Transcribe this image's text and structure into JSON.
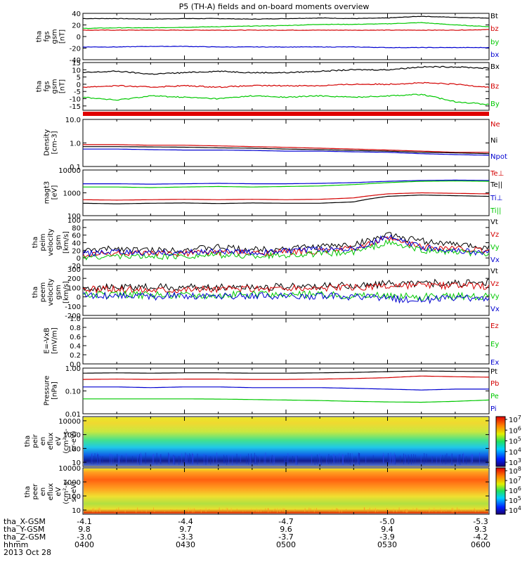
{
  "title": "P5 (TH-A) fields and on-board moments overview",
  "footer_date": "2013 Oct 28",
  "colorbar": {
    "top_ticks": [
      "10^7",
      "10^6",
      "10^5",
      "10^4",
      "10^3"
    ],
    "bottom_ticks": [
      "10^8",
      "10^7",
      "10^6",
      "10^5",
      "10^4"
    ]
  },
  "ephemeris": {
    "row_labels": [
      "tha_X-GSM",
      "tha_Y-GSM",
      "tha_Z-GSM",
      "hhmm"
    ],
    "columns": [
      {
        "time": "0400",
        "x": "-4.1",
        "y": "9.8",
        "z": "-3.0"
      },
      {
        "time": "0430",
        "x": "-4.4",
        "y": "9.7",
        "z": "-3.3"
      },
      {
        "time": "0500",
        "x": "-4.7",
        "y": "9.6",
        "z": "-3.7"
      },
      {
        "time": "0530",
        "x": "-5.0",
        "y": "9.4",
        "z": "-3.9"
      },
      {
        "time": "0600",
        "x": "-5.3",
        "y": "9.3",
        "z": "-4.2"
      }
    ]
  },
  "chart_data": [
    {
      "type": "line",
      "ylabel": [
        "tha",
        "fgs",
        "gsm",
        "[nT]"
      ],
      "ylim": [
        -40,
        40
      ],
      "log": false,
      "yticks": [
        -40,
        -20,
        0,
        20,
        40
      ],
      "yticklabels": [
        "-40",
        "-20",
        "0",
        "20",
        "40"
      ],
      "x": [
        0,
        10,
        20,
        30,
        40,
        50,
        60,
        70,
        80,
        90,
        100,
        110,
        120
      ],
      "series": [
        {
          "name": "Bt",
          "color": "#000000",
          "values": [
            31,
            31,
            30,
            31,
            31,
            30,
            31,
            32,
            31,
            32,
            35,
            33,
            32
          ]
        },
        {
          "name": "bz",
          "color": "#d40000",
          "values": [
            11,
            11,
            11,
            11,
            11,
            11,
            11,
            11,
            11,
            11,
            11,
            11,
            12
          ]
        },
        {
          "name": "by",
          "color": "#00c800",
          "values": [
            14,
            15,
            15,
            16,
            17,
            18,
            19,
            21,
            21,
            22,
            24,
            20,
            17
          ]
        },
        {
          "name": "bx",
          "color": "#0000d0",
          "values": [
            -18,
            -18,
            -17,
            -17,
            -18,
            -18,
            -18,
            -18,
            -18,
            -19,
            -19,
            -19,
            -19
          ]
        }
      ]
    },
    {
      "type": "line",
      "ylabel": [
        "tha",
        "fgs",
        "gsm",
        "[nT]"
      ],
      "ylim": [
        -18,
        15
      ],
      "log": false,
      "yticks": [
        -15,
        -10,
        -5,
        0,
        5,
        10,
        15
      ],
      "yticklabels": [
        "-15",
        "-10",
        "-5",
        "0",
        "5",
        "10",
        "15"
      ],
      "x": [
        0,
        10,
        20,
        30,
        40,
        50,
        60,
        70,
        80,
        90,
        100,
        110,
        120
      ],
      "series": [
        {
          "name": "Bx",
          "color": "#000000",
          "values": [
            8,
            9,
            7,
            8,
            9,
            8,
            8,
            9,
            10,
            10,
            12,
            12,
            11
          ]
        },
        {
          "name": "Bz",
          "color": "#d40000",
          "values": [
            -2,
            -1,
            -2,
            -1,
            -2,
            -1,
            -1,
            -1,
            0,
            0,
            1,
            0,
            -2
          ]
        },
        {
          "name": "By",
          "color": "#00c800",
          "values": [
            -9,
            -11,
            -8,
            -9,
            -10,
            -8,
            -9,
            -8,
            -9,
            -8,
            -7,
            -12,
            -14
          ]
        }
      ]
    },
    {
      "type": "line",
      "ylabel": [
        "Density",
        "[cm-3]"
      ],
      "ylim": [
        0.1,
        10
      ],
      "log": true,
      "yticks": [
        0.1,
        1,
        10
      ],
      "yticklabels": [
        "0.1",
        "1.0",
        "10.0"
      ],
      "x": [
        0,
        10,
        20,
        30,
        40,
        50,
        60,
        70,
        80,
        90,
        100,
        110,
        120
      ],
      "series": [
        {
          "name": "Ne",
          "color": "#d40000",
          "values": [
            0.85,
            0.85,
            0.8,
            0.8,
            0.75,
            0.7,
            0.65,
            0.6,
            0.55,
            0.5,
            0.45,
            0.4,
            0.4
          ]
        },
        {
          "name": "Ni",
          "color": "#000000",
          "values": [
            0.7,
            0.7,
            0.68,
            0.66,
            0.62,
            0.6,
            0.55,
            0.52,
            0.48,
            0.45,
            0.4,
            0.38,
            0.35
          ]
        },
        {
          "name": "Npot",
          "color": "#0000d0",
          "values": [
            0.55,
            0.55,
            0.52,
            0.5,
            0.5,
            0.48,
            0.45,
            0.45,
            0.42,
            0.4,
            0.35,
            0.32,
            0.3
          ]
        }
      ]
    },
    {
      "type": "line",
      "ylabel": [
        "magt3",
        "[eV]"
      ],
      "ylim": [
        100,
        10000
      ],
      "log": true,
      "yticks": [
        100,
        1000,
        10000
      ],
      "yticklabels": [
        "100",
        "1000",
        "10000"
      ],
      "x": [
        0,
        10,
        20,
        30,
        40,
        50,
        60,
        70,
        80,
        90,
        100,
        110,
        120
      ],
      "series": [
        {
          "name": "Te⊥",
          "color": "#d40000",
          "values": [
            500,
            480,
            500,
            520,
            500,
            520,
            500,
            520,
            600,
            900,
            1000,
            950,
            900
          ]
        },
        {
          "name": "Te||",
          "color": "#000000",
          "values": [
            350,
            330,
            350,
            360,
            340,
            360,
            350,
            350,
            400,
            700,
            800,
            750,
            700
          ]
        },
        {
          "name": "Ti⊥",
          "color": "#0000d0",
          "values": [
            2500,
            2500,
            2400,
            2500,
            2600,
            2500,
            2500,
            2600,
            2800,
            3200,
            3500,
            3600,
            3500
          ]
        },
        {
          "name": "Ti||",
          "color": "#00c800",
          "values": [
            1800,
            1800,
            1700,
            1800,
            1900,
            1800,
            1900,
            2000,
            2300,
            2800,
            3200,
            3300,
            3200
          ]
        }
      ]
    },
    {
      "type": "line",
      "ylabel": [
        "tha",
        "peim",
        "velocity",
        "gsm",
        "[km/s]"
      ],
      "ylim": [
        -20,
        100
      ],
      "log": false,
      "yticks": [
        -20,
        0,
        20,
        40,
        60,
        80,
        100
      ],
      "yticklabels": [
        "-20",
        "0",
        "20",
        "40",
        "60",
        "80",
        "100"
      ],
      "x": [
        0,
        10,
        20,
        30,
        40,
        50,
        60,
        70,
        80,
        90,
        100,
        110,
        120
      ],
      "series": [
        {
          "name": "Vt",
          "color": "#000000",
          "values": [
            18,
            25,
            20,
            22,
            28,
            22,
            25,
            30,
            35,
            60,
            45,
            35,
            28
          ]
        },
        {
          "name": "Vz",
          "color": "#d40000",
          "values": [
            8,
            12,
            10,
            12,
            15,
            12,
            15,
            18,
            25,
            50,
            30,
            25,
            18
          ]
        },
        {
          "name": "Vy",
          "color": "#00c800",
          "values": [
            2,
            5,
            3,
            5,
            8,
            5,
            8,
            10,
            15,
            40,
            20,
            15,
            10
          ]
        },
        {
          "name": "Vx",
          "color": "#0000d0",
          "values": [
            10,
            15,
            12,
            14,
            18,
            14,
            18,
            22,
            25,
            55,
            28,
            20,
            12
          ]
        }
      ]
    },
    {
      "type": "line",
      "ylabel": [
        "tha",
        "peem",
        "velocity",
        "gsm",
        "[km/s]"
      ],
      "ylim": [
        -200,
        300
      ],
      "log": false,
      "yticks": [
        -200,
        -100,
        0,
        100,
        200,
        300
      ],
      "yticklabels": [
        "-200",
        "-100",
        "0",
        "100",
        "200",
        "300"
      ],
      "x": [
        0,
        10,
        20,
        30,
        40,
        50,
        60,
        70,
        80,
        90,
        100,
        110,
        120
      ],
      "series": [
        {
          "name": "Vt",
          "color": "#000000",
          "values": [
            100,
            100,
            105,
            100,
            105,
            110,
            110,
            115,
            120,
            140,
            150,
            145,
            150
          ]
        },
        {
          "name": "Vz",
          "color": "#d40000",
          "values": [
            80,
            80,
            80,
            85,
            85,
            90,
            90,
            95,
            100,
            110,
            120,
            115,
            120
          ]
        },
        {
          "name": "Vy",
          "color": "#00c800",
          "values": [
            20,
            25,
            20,
            25,
            20,
            25,
            20,
            25,
            20,
            10,
            0,
            5,
            10
          ]
        },
        {
          "name": "Vx",
          "color": "#0000d0",
          "values": [
            10,
            10,
            5,
            10,
            5,
            10,
            5,
            10,
            0,
            -20,
            -30,
            -20,
            -10
          ]
        }
      ]
    },
    {
      "type": "line",
      "ylabel": [
        "E=-VxB",
        "[mV/m]"
      ],
      "ylim": [
        0,
        1
      ],
      "log": false,
      "yticks": [
        0,
        0.2,
        0.4,
        0.6,
        0.8,
        1.0
      ],
      "yticklabels": [
        "0.0",
        "0.2",
        "0.4",
        "0.6",
        "0.8",
        "1.0"
      ],
      "x": [],
      "series": [
        {
          "name": "Ez",
          "color": "#d40000",
          "values": []
        },
        {
          "name": "Ey",
          "color": "#00c800",
          "values": []
        },
        {
          "name": "Ex",
          "color": "#0000d0",
          "values": []
        }
      ]
    },
    {
      "type": "line",
      "ylabel": [
        "Pressure",
        "[nPa]"
      ],
      "ylim": [
        0.01,
        1.0
      ],
      "log": true,
      "yticks": [
        0.01,
        0.1,
        1.0
      ],
      "yticklabels": [
        "0.01",
        "0.10",
        "1.00"
      ],
      "x": [
        0,
        10,
        20,
        30,
        40,
        50,
        60,
        70,
        80,
        90,
        100,
        110,
        120
      ],
      "series": [
        {
          "name": "Pt",
          "color": "#000000",
          "values": [
            0.6,
            0.62,
            0.6,
            0.62,
            0.62,
            0.6,
            0.6,
            0.62,
            0.65,
            0.7,
            0.75,
            0.72,
            0.7
          ]
        },
        {
          "name": "Pb",
          "color": "#d40000",
          "values": [
            0.32,
            0.33,
            0.32,
            0.33,
            0.33,
            0.32,
            0.32,
            0.33,
            0.35,
            0.38,
            0.45,
            0.42,
            0.4
          ]
        },
        {
          "name": "Pe",
          "color": "#00c800",
          "values": [
            0.045,
            0.045,
            0.045,
            0.045,
            0.044,
            0.042,
            0.04,
            0.038,
            0.035,
            0.033,
            0.032,
            0.035,
            0.04
          ]
        },
        {
          "name": "Pi",
          "color": "#0000d0",
          "values": [
            0.15,
            0.15,
            0.14,
            0.15,
            0.15,
            0.14,
            0.14,
            0.14,
            0.13,
            0.12,
            0.11,
            0.12,
            0.12
          ]
        }
      ]
    },
    {
      "type": "heatmap",
      "ylabel": [
        "tha",
        "peir",
        "en",
        "eflux",
        "eV",
        "(cm^2-s-",
        "sr-eV)"
      ],
      "ylim": [
        5,
        20000
      ],
      "log": true,
      "yticks": [
        10,
        100,
        1000,
        10000
      ],
      "yticklabels": [
        "10",
        "100",
        "1000",
        "10000"
      ],
      "zlabels": [
        "10^3",
        "10^4",
        "10^5",
        "10^6",
        "10^7"
      ]
    },
    {
      "type": "heatmap",
      "ylabel": [
        "tha",
        "peer",
        "en",
        "eflux",
        "eV",
        "(cm^2-s-",
        "sr-eV)"
      ],
      "ylim": [
        5,
        10000
      ],
      "log": true,
      "yticks": [
        10,
        100,
        1000,
        10000
      ],
      "yticklabels": [
        "10",
        "100",
        "1000",
        "10000"
      ],
      "zlabels": [
        "10^4",
        "10^5",
        "10^6",
        "10^7",
        "10^8"
      ]
    }
  ]
}
